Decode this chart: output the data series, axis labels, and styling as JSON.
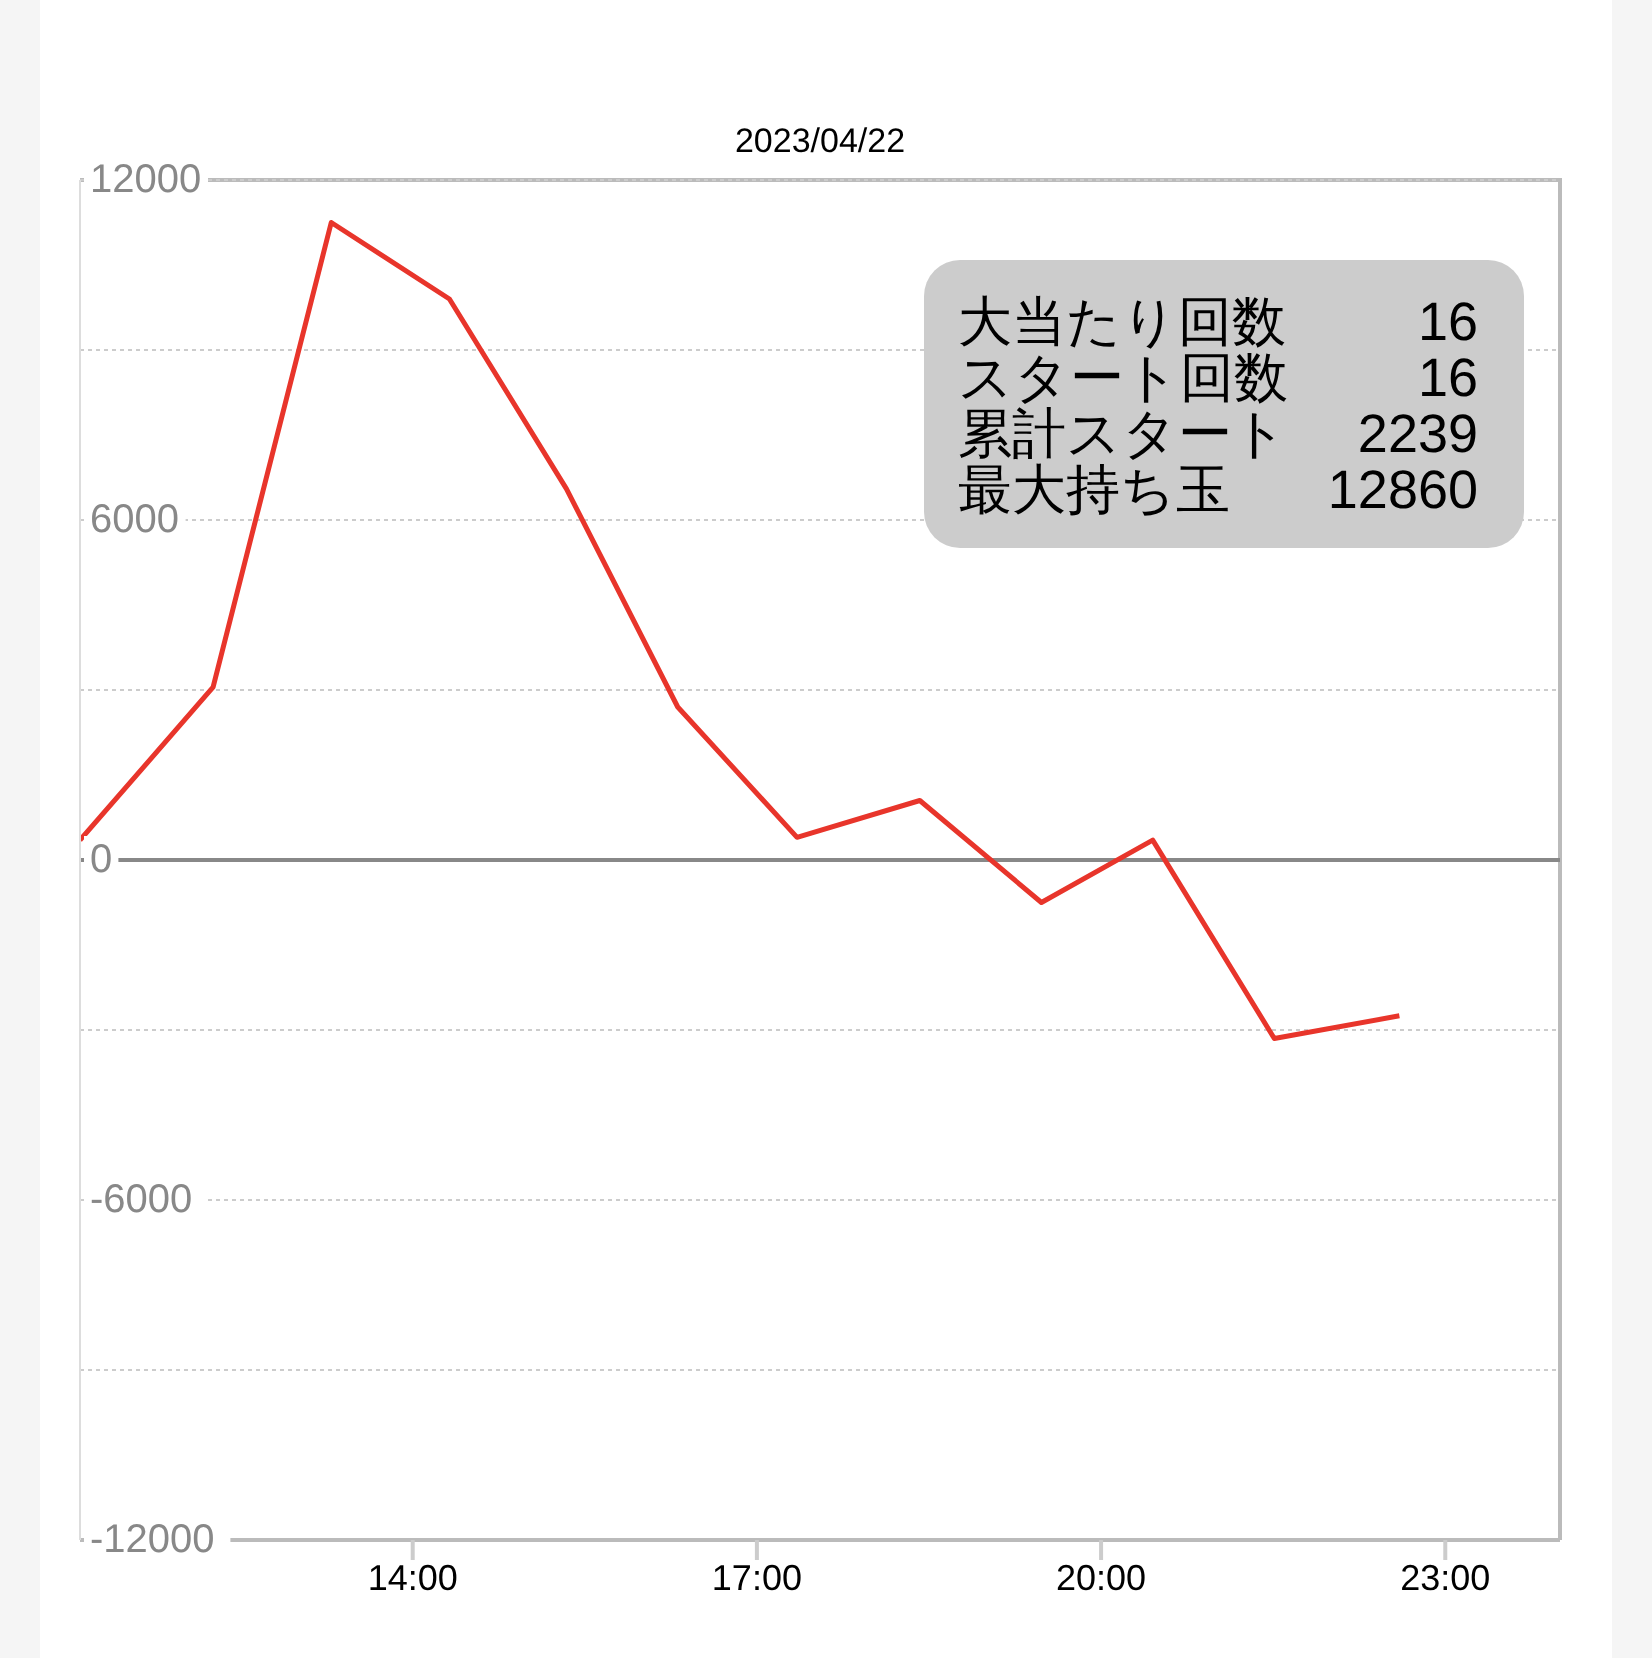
{
  "chart_data": {
    "type": "line",
    "title": "2023/04/22",
    "x": [
      11.1,
      12.26,
      13.29,
      14.32,
      15.34,
      16.31,
      17.35,
      18.42,
      19.48,
      20.45,
      21.51,
      22.6
    ],
    "values": [
      350,
      3050,
      11250,
      9900,
      6550,
      2700,
      400,
      1050,
      -750,
      350,
      -3150,
      -2750
    ],
    "color": "#e8352b",
    "xlim": [
      11.1,
      24
    ],
    "xticks": [
      {
        "value": 14,
        "label": "14:00"
      },
      {
        "value": 17,
        "label": "17:00"
      },
      {
        "value": 20,
        "label": "20:00"
      },
      {
        "value": 23,
        "label": "23:00"
      }
    ],
    "ylim": [
      -12000,
      12000
    ],
    "yticks": [
      12000,
      {
        "value": 9000,
        "label": null
      },
      6000,
      {
        "value": 3000,
        "label": null
      },
      0,
      {
        "value": -3000,
        "label": null
      },
      -6000,
      {
        "value": -9000,
        "label": null
      },
      -12000
    ],
    "grid": "y",
    "ref_lines": [
      {
        "axis": "y",
        "value": 0,
        "color": "#888888"
      }
    ],
    "annotations": [
      "大当たり回数",
      "16",
      "スタート回数",
      "16",
      "累計スタート",
      "2239",
      "最大持ち玉",
      "12860"
    ],
    "marker": "none",
    "line_style": "solid"
  }
}
